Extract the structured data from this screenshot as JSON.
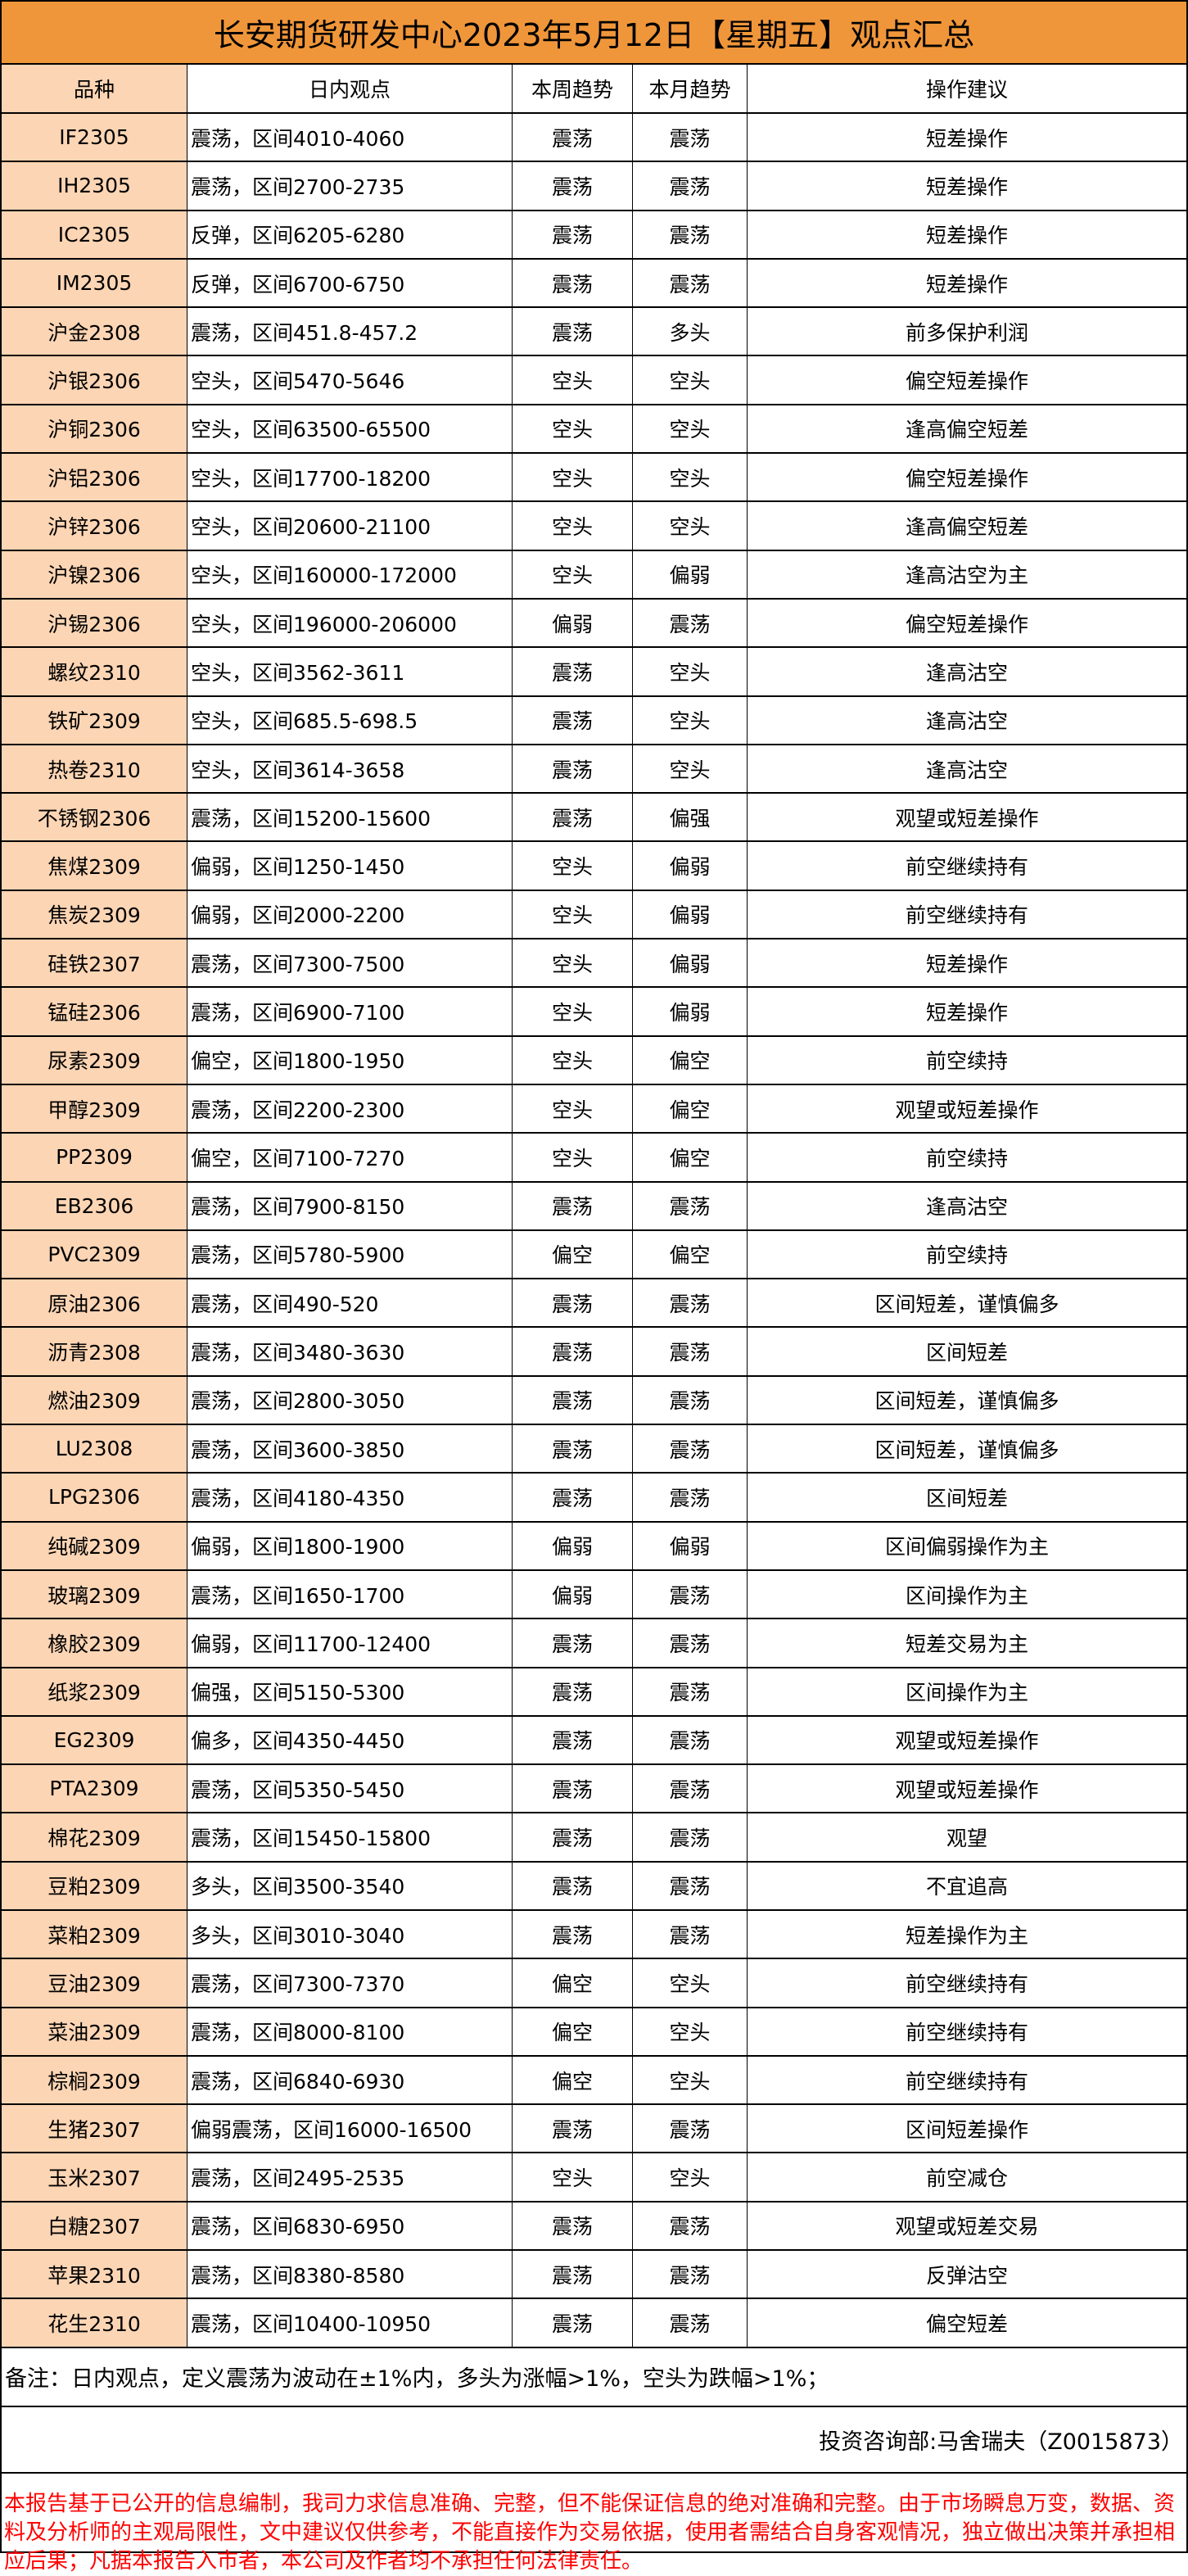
{
  "title": "长安期货研发中心2023年5月12日【星期五】观点汇总",
  "colors": {
    "title_bg": "#F0963A",
    "first_col_bg": "#FCD5B4",
    "disclaimer": "#FF0000"
  },
  "headers": [
    "品种",
    "日内观点",
    "本周趋势",
    "本月趋势",
    "操作建议"
  ],
  "rows": [
    [
      "IF2305",
      "震荡，区间4010-4060",
      "震荡",
      "震荡",
      "短差操作"
    ],
    [
      "IH2305",
      "震荡，区间2700-2735",
      "震荡",
      "震荡",
      "短差操作"
    ],
    [
      "IC2305",
      "反弹，区间6205-6280",
      "震荡",
      "震荡",
      "短差操作"
    ],
    [
      "IM2305",
      "反弹，区间6700-6750",
      "震荡",
      "震荡",
      "短差操作"
    ],
    [
      "沪金2308",
      "震荡，区间451.8-457.2",
      "震荡",
      "多头",
      "前多保护利润"
    ],
    [
      "沪银2306",
      "空头，区间5470-5646",
      "空头",
      "空头",
      "偏空短差操作"
    ],
    [
      "沪铜2306",
      "空头，区间63500-65500",
      "空头",
      "空头",
      "逢高偏空短差"
    ],
    [
      "沪铝2306",
      "空头，区间17700-18200",
      "空头",
      "空头",
      "偏空短差操作"
    ],
    [
      "沪锌2306",
      "空头，区间20600-21100",
      "空头",
      "空头",
      "逢高偏空短差"
    ],
    [
      "沪镍2306",
      "空头，区间160000-172000",
      "空头",
      "偏弱",
      "逢高沽空为主"
    ],
    [
      "沪锡2306",
      "空头，区间196000-206000",
      "偏弱",
      "震荡",
      "偏空短差操作"
    ],
    [
      "螺纹2310",
      "空头，区间3562-3611",
      "震荡",
      "空头",
      "逢高沽空"
    ],
    [
      "铁矿2309",
      "空头，区间685.5-698.5",
      "震荡",
      "空头",
      "逢高沽空"
    ],
    [
      "热卷2310",
      "空头，区间3614-3658",
      "震荡",
      "空头",
      "逢高沽空"
    ],
    [
      "不锈钢2306",
      "震荡，区间15200-15600",
      "震荡",
      "偏强",
      "观望或短差操作"
    ],
    [
      "焦煤2309",
      "偏弱，区间1250-1450",
      "空头",
      "偏弱",
      "前空继续持有"
    ],
    [
      "焦炭2309",
      "偏弱，区间2000-2200",
      "空头",
      "偏弱",
      "前空继续持有"
    ],
    [
      "硅铁2307",
      "震荡，区间7300-7500",
      "空头",
      "偏弱",
      "短差操作"
    ],
    [
      "锰硅2306",
      "震荡，区间6900-7100",
      "空头",
      "偏弱",
      "短差操作"
    ],
    [
      "尿素2309",
      "偏空，区间1800-1950",
      "空头",
      "偏空",
      "前空续持"
    ],
    [
      "甲醇2309",
      "震荡，区间2200-2300",
      "空头",
      "偏空",
      "观望或短差操作"
    ],
    [
      "PP2309",
      "偏空，区间7100-7270",
      "空头",
      "偏空",
      "前空续持"
    ],
    [
      "EB2306",
      "震荡，区间7900-8150",
      "震荡",
      "震荡",
      "逢高沽空"
    ],
    [
      "PVC2309",
      "震荡，区间5780-5900",
      "偏空",
      "偏空",
      "前空续持"
    ],
    [
      "原油2306",
      "震荡，区间490-520",
      "震荡",
      "震荡",
      "区间短差，谨慎偏多"
    ],
    [
      "沥青2308",
      "震荡，区间3480-3630",
      "震荡",
      "震荡",
      "区间短差"
    ],
    [
      "燃油2309",
      "震荡，区间2800-3050",
      "震荡",
      "震荡",
      "区间短差，谨慎偏多"
    ],
    [
      "LU2308",
      "震荡，区间3600-3850",
      "震荡",
      "震荡",
      "区间短差，谨慎偏多"
    ],
    [
      "LPG2306",
      "震荡，区间4180-4350",
      "震荡",
      "震荡",
      "区间短差"
    ],
    [
      "纯碱2309",
      "偏弱，区间1800-1900",
      "偏弱",
      "偏弱",
      "区间偏弱操作为主"
    ],
    [
      "玻璃2309",
      "震荡，区间1650-1700",
      "偏弱",
      "震荡",
      "区间操作为主"
    ],
    [
      "橡胶2309",
      "偏弱，区间11700-12400",
      "震荡",
      "震荡",
      "短差交易为主"
    ],
    [
      "纸浆2309",
      "偏强，区间5150-5300",
      "震荡",
      "震荡",
      "区间操作为主"
    ],
    [
      "EG2309",
      "偏多，区间4350-4450",
      "震荡",
      "震荡",
      "观望或短差操作"
    ],
    [
      "PTA2309",
      "震荡，区间5350-5450",
      "震荡",
      "震荡",
      "观望或短差操作"
    ],
    [
      "棉花2309",
      "震荡，区间15450-15800",
      "震荡",
      "震荡",
      "观望"
    ],
    [
      "豆粕2309",
      "多头，区间3500-3540",
      "震荡",
      "震荡",
      "不宜追高"
    ],
    [
      "菜粕2309",
      "多头，区间3010-3040",
      "震荡",
      "震荡",
      "短差操作为主"
    ],
    [
      "豆油2309",
      "震荡，区间7300-7370",
      "偏空",
      "空头",
      "前空继续持有"
    ],
    [
      "菜油2309",
      "震荡，区间8000-8100",
      "偏空",
      "空头",
      "前空继续持有"
    ],
    [
      "棕榈2309",
      "震荡，区间6840-6930",
      "偏空",
      "空头",
      "前空继续持有"
    ],
    [
      "生猪2307",
      "偏弱震荡，区间16000-16500",
      "震荡",
      "震荡",
      "区间短差操作"
    ],
    [
      "玉米2307",
      "震荡，区间2495-2535",
      "空头",
      "空头",
      "前空减仓"
    ],
    [
      "白糖2307",
      "震荡，区间6830-6950",
      "震荡",
      "震荡",
      "观望或短差交易"
    ],
    [
      "苹果2310",
      "震荡，区间8380-8580",
      "震荡",
      "震荡",
      "反弹沽空"
    ],
    [
      "花生2310",
      "震荡，区间10400-10950",
      "震荡",
      "震荡",
      "偏空短差"
    ]
  ],
  "note": "备注：日内观点，定义震荡为波动在±1%内，多头为涨幅>1%，空头为跌幅>1%；",
  "signature": "投资咨询部:马舍瑞夫（Z0015873）",
  "disclaimer": "本报告基于已公开的信息编制，我司力求信息准确、完整，但不能保证信息的绝对准确和完整。由于市场瞬息万变，数据、资料及分析师的主观局限性，文中建议仅供参考，不能直接作为交易依据，使用者需结合自身客观情况，独立做出决策并承担相应后果；凡据本报告入市者，本公司及作者均不承担任何法律责任。"
}
